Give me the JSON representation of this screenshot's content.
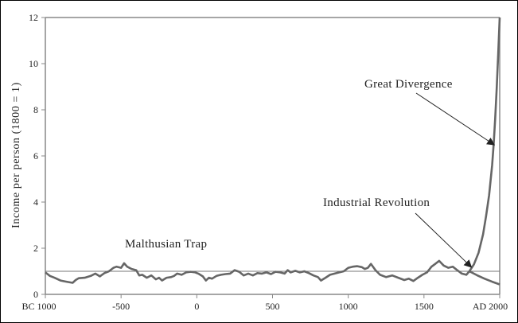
{
  "chart_data": {
    "type": "line",
    "title": "",
    "xlabel": "",
    "ylabel": "Income per person (1800 = 1)",
    "xlim": [
      -1000,
      2000
    ],
    "ylim": [
      0,
      12
    ],
    "x_ticks": [
      {
        "value": -1000,
        "label": "BC 1000"
      },
      {
        "value": -500,
        "label": "-500"
      },
      {
        "value": 0,
        "label": "0"
      },
      {
        "value": 500,
        "label": "500"
      },
      {
        "value": 1000,
        "label": "1000"
      },
      {
        "value": 1500,
        "label": "1500"
      },
      {
        "value": 2000,
        "label": "AD 2000"
      }
    ],
    "y_ticks": [
      0,
      2,
      4,
      6,
      8,
      10,
      12
    ],
    "grid": false,
    "legend": "none",
    "colors": {
      "main": "#666666",
      "reference": "#777777",
      "axis": "#888888"
    },
    "reference_line": {
      "y": 1
    },
    "series": [
      {
        "x": [
          -1000,
          -970,
          -940,
          -900,
          -860,
          -820,
          -800,
          -780,
          -740,
          -700,
          -670,
          -640,
          -610,
          -580,
          -550,
          -530,
          -500,
          -480,
          -460,
          -430,
          -400,
          -380,
          -360,
          -330,
          -300,
          -270,
          -250,
          -230,
          -200,
          -170,
          -150,
          -130,
          -100,
          -70,
          -40,
          -10,
          10,
          40,
          60,
          80,
          100,
          130,
          160,
          190,
          220,
          250,
          280,
          310,
          340,
          370,
          400,
          430,
          460,
          490,
          520,
          550,
          580,
          600,
          620,
          650,
          680,
          710,
          740,
          770,
          800,
          820,
          850,
          880,
          910,
          940,
          970,
          1000,
          1030,
          1060,
          1090,
          1110,
          1130,
          1150,
          1180,
          1210,
          1250,
          1290,
          1330,
          1370,
          1400,
          1430,
          1460,
          1490,
          1520,
          1550,
          1570,
          1600,
          1630,
          1660,
          1690,
          1720,
          1750,
          1780,
          1800
        ],
        "y": [
          0.95,
          0.8,
          0.72,
          0.6,
          0.55,
          0.5,
          0.62,
          0.7,
          0.72,
          0.8,
          0.9,
          0.78,
          0.92,
          1.0,
          1.15,
          1.2,
          1.15,
          1.35,
          1.2,
          1.1,
          1.05,
          0.82,
          0.85,
          0.72,
          0.82,
          0.65,
          0.72,
          0.6,
          0.72,
          0.75,
          0.8,
          0.9,
          0.85,
          0.95,
          0.98,
          0.95,
          0.9,
          0.78,
          0.6,
          0.72,
          0.68,
          0.8,
          0.85,
          0.88,
          0.9,
          1.05,
          0.98,
          0.82,
          0.9,
          0.82,
          0.92,
          0.9,
          0.95,
          0.88,
          0.98,
          0.95,
          0.9,
          1.05,
          0.95,
          1.02,
          0.95,
          1.0,
          0.92,
          0.82,
          0.75,
          0.6,
          0.72,
          0.85,
          0.9,
          0.95,
          1.0,
          1.15,
          1.2,
          1.22,
          1.18,
          1.1,
          1.15,
          1.32,
          1.05,
          0.85,
          0.75,
          0.82,
          0.72,
          0.62,
          0.68,
          0.58,
          0.72,
          0.85,
          0.95,
          1.2,
          1.3,
          1.45,
          1.25,
          1.15,
          1.2,
          1.05,
          0.9,
          0.85,
          1.0
        ]
      },
      {
        "x": [
          1800,
          1830,
          1860,
          1890,
          1910,
          1930,
          1950,
          1960,
          1970,
          1980,
          1990,
          2000
        ],
        "y": [
          1.0,
          1.3,
          1.8,
          2.6,
          3.4,
          4.3,
          5.6,
          6.5,
          7.6,
          8.9,
          10.4,
          12.0
        ]
      },
      {
        "x": [
          1800,
          1850,
          1900,
          1950,
          2000
        ],
        "y": [
          1.0,
          0.83,
          0.68,
          0.55,
          0.43
        ]
      }
    ],
    "annotations": [
      {
        "text": "Great Divergence",
        "arrow_to": [
          1960,
          6.5
        ]
      },
      {
        "text": "Industrial Revolution",
        "arrow_to": [
          1810,
          1.2
        ]
      },
      {
        "text": "Malthusian Trap"
      }
    ]
  }
}
